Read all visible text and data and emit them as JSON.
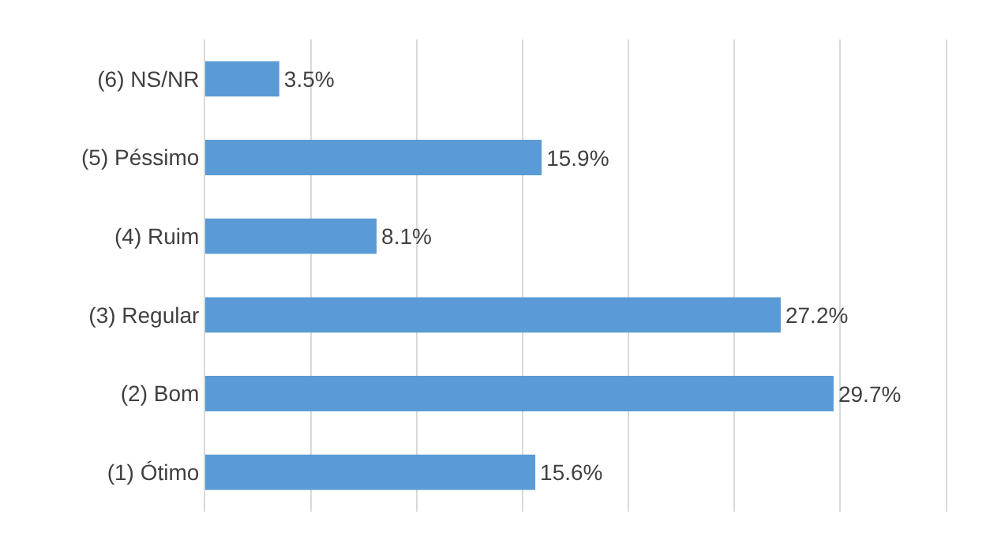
{
  "chart_data": {
    "type": "bar",
    "orientation": "horizontal",
    "categories": [
      "(6) NS/NR",
      "(5) Péssimo",
      "(4) Ruim",
      "(3) Regular",
      "(2) Bom",
      "(1) Ótimo"
    ],
    "values": [
      3.5,
      15.9,
      8.1,
      27.2,
      29.7,
      15.6
    ],
    "value_labels": [
      "3.5%",
      "15.9%",
      "8.1%",
      "27.2%",
      "29.7%",
      "15.6%"
    ],
    "color": "#5b9bd5",
    "xlim": [
      0,
      35
    ],
    "xticks": [
      {
        "value": 5,
        "label": null
      },
      {
        "value": 10,
        "label": null
      },
      {
        "value": 15,
        "label": null
      },
      {
        "value": 20,
        "label": null
      },
      {
        "value": 25,
        "label": null
      },
      {
        "value": 30,
        "label": null
      }
    ],
    "grid": "x",
    "tick_labels": "y"
  }
}
